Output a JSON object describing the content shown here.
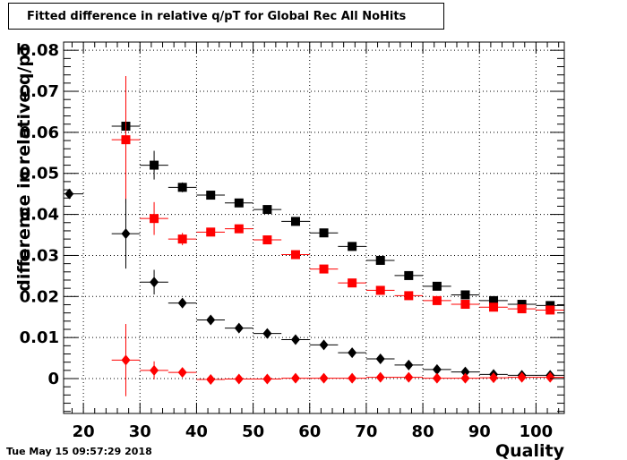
{
  "timestamp": "Tue May 15 09:57:29 2018",
  "chart_data": {
    "type": "scatter",
    "title": "Fitted difference in relative q/pT  for Global Rec All NoHits",
    "xlabel": "Quality",
    "ylabel": "difference in relative q/pT",
    "xlim": [
      16.5,
      105
    ],
    "ylim": [
      -0.0085,
      0.082
    ],
    "grid": true,
    "x_ticks": [
      20,
      30,
      40,
      50,
      60,
      70,
      80,
      90,
      100
    ],
    "y_ticks": [
      0,
      0.01,
      0.02,
      0.03,
      0.04,
      0.05,
      0.06,
      0.07,
      0.08
    ],
    "x_tick_labels": [
      "20",
      "30",
      "40",
      "50",
      "60",
      "70",
      "80",
      "90",
      "100"
    ],
    "y_tick_labels": [
      "0",
      "0.01",
      "0.02",
      "0.03",
      "0.04",
      "0.05",
      "0.06",
      "0.07",
      "0.08"
    ],
    "series": [
      {
        "marker": "square",
        "color": "#000000",
        "xerr": 2.5,
        "points": [
          [
            27.5,
            0.0615,
            0.0015
          ],
          [
            32.5,
            0.052,
            0.0035
          ],
          [
            37.5,
            0.0466,
            0.0012
          ],
          [
            42.5,
            0.0447,
            0.0006
          ],
          [
            47.5,
            0.0428,
            0.0005
          ],
          [
            52.5,
            0.0412,
            0.0004
          ],
          [
            57.5,
            0.0383,
            0.0004
          ],
          [
            62.5,
            0.0355,
            0.0004
          ],
          [
            67.5,
            0.0322,
            0.0004
          ],
          [
            72.5,
            0.0288,
            0.0004
          ],
          [
            77.5,
            0.0251,
            0.0004
          ],
          [
            82.5,
            0.0225,
            0.0003
          ],
          [
            87.5,
            0.0204,
            0.0003
          ],
          [
            92.5,
            0.019,
            0.0003
          ],
          [
            97.5,
            0.0181,
            0.0003
          ],
          [
            102.5,
            0.0178,
            0.0003
          ]
        ]
      },
      {
        "marker": "square",
        "color": "#ff0000",
        "xerr": 2.5,
        "points": [
          [
            27.5,
            0.0582,
            0.0155
          ],
          [
            32.5,
            0.039,
            0.004
          ],
          [
            37.5,
            0.034,
            0.0015
          ],
          [
            42.5,
            0.0357,
            0.0008
          ],
          [
            47.5,
            0.0365,
            0.0007
          ],
          [
            52.5,
            0.0338,
            0.0005
          ],
          [
            57.5,
            0.0302,
            0.0005
          ],
          [
            62.5,
            0.0267,
            0.0005
          ],
          [
            67.5,
            0.0233,
            0.0004
          ],
          [
            72.5,
            0.0215,
            0.0004
          ],
          [
            77.5,
            0.0202,
            0.0004
          ],
          [
            82.5,
            0.019,
            0.0003
          ],
          [
            87.5,
            0.0181,
            0.0003
          ],
          [
            92.5,
            0.0174,
            0.0003
          ],
          [
            97.5,
            0.017,
            0.0003
          ],
          [
            102.5,
            0.0167,
            0.0003
          ]
        ]
      },
      {
        "marker": "diamond",
        "color": "#000000",
        "xerr": 2.5,
        "points": [
          [
            17.5,
            0.045,
            0.0
          ],
          [
            27.5,
            0.0353,
            0.0085
          ],
          [
            32.5,
            0.0235,
            0.003
          ],
          [
            37.5,
            0.0184,
            0.0012
          ],
          [
            42.5,
            0.0143,
            0.0006
          ],
          [
            47.5,
            0.0123,
            0.0005
          ],
          [
            52.5,
            0.011,
            0.0004
          ],
          [
            57.5,
            0.0095,
            0.0004
          ],
          [
            62.5,
            0.0082,
            0.0004
          ],
          [
            67.5,
            0.0063,
            0.0003
          ],
          [
            72.5,
            0.0048,
            0.0003
          ],
          [
            77.5,
            0.0033,
            0.0003
          ],
          [
            82.5,
            0.0022,
            0.0003
          ],
          [
            87.5,
            0.0016,
            0.0002
          ],
          [
            92.5,
            0.001,
            0.0002
          ],
          [
            97.5,
            0.0008,
            0.0002
          ],
          [
            102.5,
            0.0008,
            0.0002
          ]
        ]
      },
      {
        "marker": "diamond",
        "color": "#ff0000",
        "xerr": 2.5,
        "points": [
          [
            27.5,
            0.0045,
            0.0088
          ],
          [
            32.5,
            0.002,
            0.0022
          ],
          [
            37.5,
            0.0015,
            0.001
          ],
          [
            42.5,
            -0.0002,
            0.0003
          ],
          [
            47.5,
            -0.0001,
            0.0003
          ],
          [
            52.5,
            -0.0001,
            0.0002
          ],
          [
            57.5,
            0.0001,
            0.0002
          ],
          [
            62.5,
            0.0001,
            0.0002
          ],
          [
            67.5,
            0.0001,
            0.0002
          ],
          [
            72.5,
            0.0003,
            0.0002
          ],
          [
            77.5,
            0.0003,
            0.0002
          ],
          [
            82.5,
            0.0001,
            0.0002
          ],
          [
            87.5,
            0.0001,
            0.0002
          ],
          [
            92.5,
            0.0002,
            0.0002
          ],
          [
            97.5,
            0.0003,
            0.0002
          ],
          [
            102.5,
            0.0003,
            0.0002
          ]
        ]
      }
    ]
  }
}
